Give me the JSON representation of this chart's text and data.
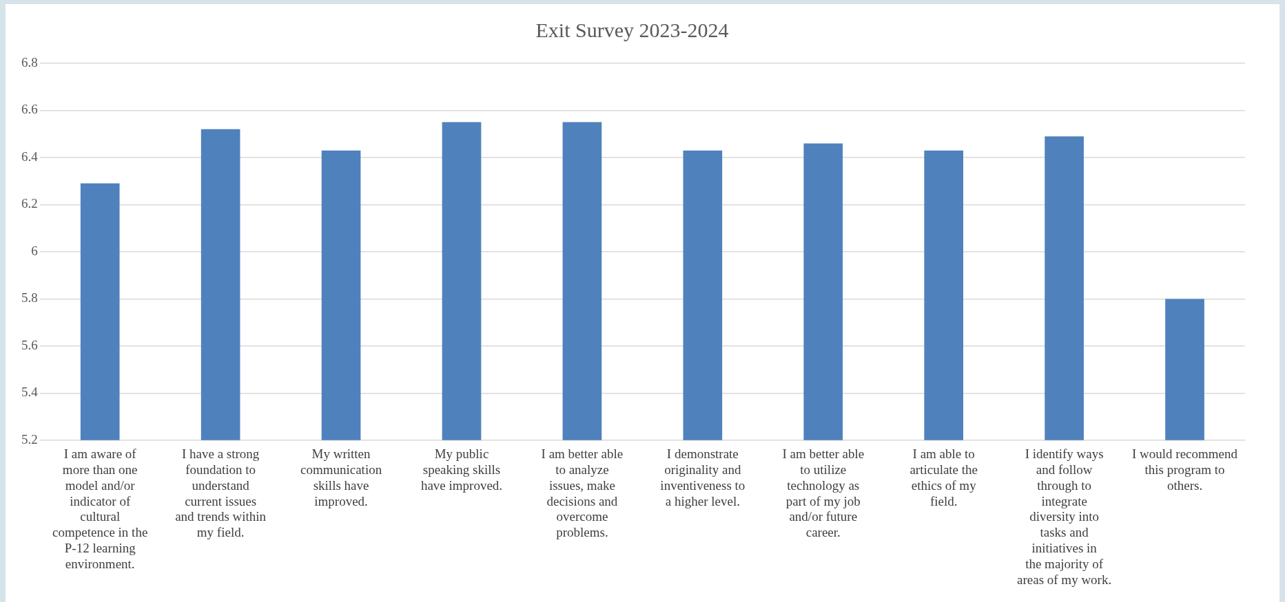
{
  "chart_data": {
    "type": "bar",
    "title": "Exit Survey 2023-2024",
    "categories": [
      "I am aware of more than one model and/or indicator of cultural competence in the P-12 learning environment.",
      "I have a strong foundation to understand current issues and trends within my field.",
      "My written communication skills have improved.",
      "My public speaking skills have improved.",
      "I am better able to analyze issues, make decisions and overcome problems.",
      "I demonstrate originality and inventiveness to a higher level.",
      "I am better able to utilize technology as part of my job and/or future career.",
      "I am able to articulate the ethics of my field.",
      "I identify ways and follow through to integrate diversity into tasks and initiatives in the majority of areas of my work.",
      "I would recommend this program to others."
    ],
    "values": [
      6.29,
      6.52,
      6.43,
      6.55,
      6.55,
      6.43,
      6.46,
      6.43,
      6.49,
      5.8
    ],
    "color": "#4f81bd",
    "ylim": [
      5.2,
      6.8
    ],
    "yticks": [
      5.2,
      5.4,
      5.6,
      5.8,
      6,
      6.2,
      6.4,
      6.6,
      6.8
    ],
    "grid": "y"
  }
}
